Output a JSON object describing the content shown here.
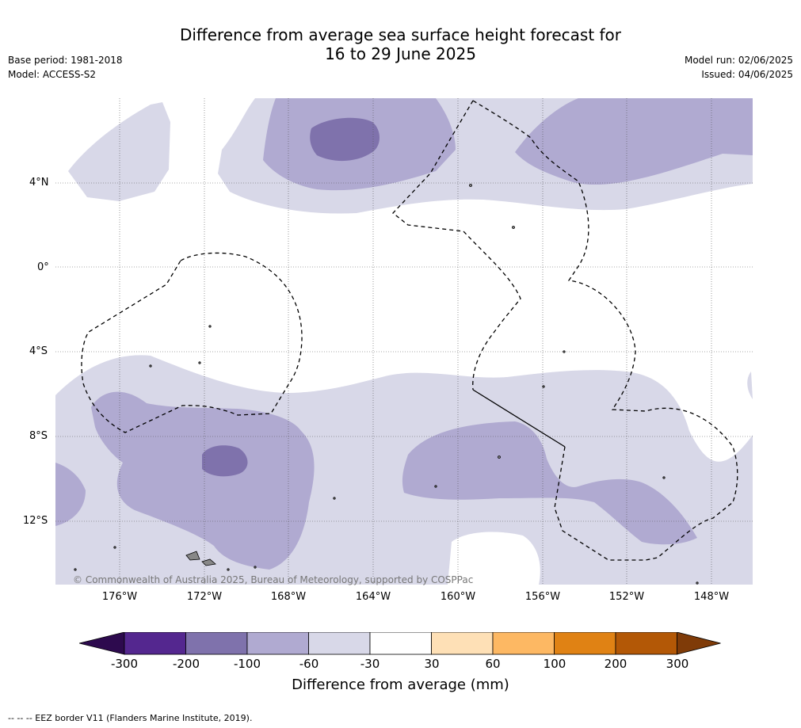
{
  "title": {
    "line1": "Difference from average sea surface height forecast for",
    "line2": "16 to 29 June 2025"
  },
  "meta": {
    "base_period": "Base period: 1981-2018",
    "model": "Model: ACCESS-S2",
    "model_run": "Model run: 02/06/2025",
    "issued": "Issued: 04/06/2025"
  },
  "map": {
    "lat_labels": [
      "4°N",
      "0°",
      "4°S",
      "8°S",
      "12°S"
    ],
    "lon_labels": [
      "176°W",
      "172°W",
      "168°W",
      "164°W",
      "160°W",
      "156°W",
      "152°W",
      "148°W"
    ],
    "copyright": "© Commonwealth of Australia 2025, Bureau of Meteorology, supported by COSPPac",
    "colors": {
      "light_lavender": "#d8d8e8",
      "medium_purple": "#b0aad1",
      "dark_purple": "#7f72ac",
      "land": "#888888"
    }
  },
  "colorbar": {
    "ticks": [
      "-300",
      "-200",
      "-100",
      "-60",
      "-30",
      "30",
      "60",
      "100",
      "200",
      "300"
    ],
    "colors": [
      "#2d0a4e",
      "#54278f",
      "#7f72ac",
      "#b0aad1",
      "#d8d8e8",
      "#ffffff",
      "#fee0b6",
      "#fdb863",
      "#e08214",
      "#b35806",
      "#7f3b08"
    ],
    "label": "Difference from average (mm)"
  },
  "footer": "--  --  -- EEZ border V11 (Flanders Marine Institute, 2019)."
}
